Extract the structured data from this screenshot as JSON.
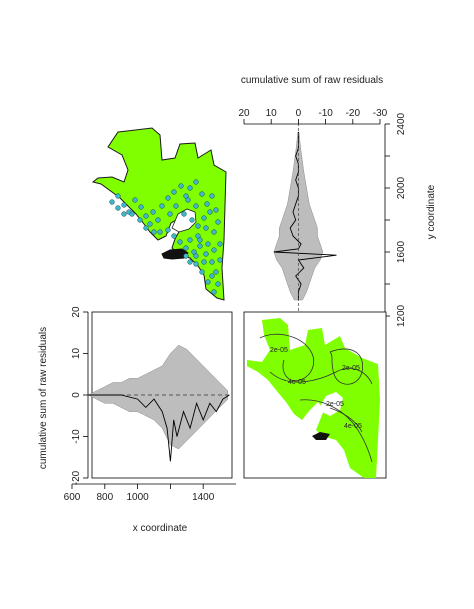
{
  "colors": {
    "map_fill": "#7fff00",
    "band_fill": "#bdbdbd",
    "points": "#3fb6c6",
    "line": "#000000",
    "background": "#ffffff"
  },
  "chart_data": [
    {
      "type": "area",
      "panel": "top-right",
      "xlabel": "cumulative sum of raw residuals",
      "ylabel": "y coordinate",
      "xlim": [
        20,
        -30
      ],
      "xticks": [
        "20",
        "10",
        "0",
        "-10",
        "-20",
        "-30"
      ],
      "ylim": [
        1200,
        2400
      ],
      "yticks": [
        "1200",
        "1600",
        "2000",
        "2400"
      ],
      "yticks_minor": [
        "1400",
        "1800",
        "2200"
      ],
      "series": [
        {
          "name": "",
          "y": [
            1300,
            1350,
            1400,
            1450,
            1500,
            1550,
            1580,
            1600,
            1620,
            1650,
            1700,
            1750,
            1800,
            1850,
            1900,
            1950,
            2000,
            2050,
            2100,
            2150,
            2200,
            2250,
            2300,
            2350
          ],
          "x": [
            0,
            0,
            -1,
            1,
            -2,
            0,
            -14,
            9,
            0,
            -1,
            2,
            3,
            1,
            2,
            1,
            0,
            0,
            1,
            0,
            0,
            1,
            0,
            0,
            0
          ]
        }
      ],
      "band": {
        "y": [
          1300,
          1350,
          1400,
          1450,
          1500,
          1550,
          1600,
          1650,
          1700,
          1750,
          1800,
          1850,
          1900,
          1950,
          2000,
          2050,
          2100,
          2150,
          2200,
          2250,
          2300,
          2350
        ],
        "half_width": [
          1.5,
          3,
          4,
          5,
          6,
          8,
          9,
          8,
          7,
          7,
          6,
          5,
          4,
          3.5,
          3,
          2.5,
          2,
          1.6,
          1.2,
          0.8,
          0.5,
          0.2
        ]
      }
    },
    {
      "type": "area",
      "panel": "bottom-left",
      "xlabel": "x coordinate",
      "ylabel": "cumulative sum of raw residuals",
      "xlim": [
        600,
        1600
      ],
      "xticks": [
        "600",
        "800",
        "1000",
        "1400"
      ],
      "xticks_minor": [
        "1200"
      ],
      "ylim": [
        -20,
        20
      ],
      "yticks": [
        "-20",
        "-10",
        "0",
        "10",
        "20"
      ],
      "series": [
        {
          "name": "",
          "x": [
            700,
            800,
            900,
            1000,
            1050,
            1100,
            1150,
            1180,
            1200,
            1220,
            1240,
            1280,
            1320,
            1360,
            1400,
            1440,
            1480,
            1520,
            1560
          ],
          "y": [
            0,
            0,
            0,
            -1,
            -3,
            -1,
            -4,
            -8,
            -16,
            -6,
            -10,
            -4,
            -8,
            -2,
            -6,
            -2,
            -4,
            -1,
            0
          ]
        }
      ],
      "band": {
        "x": [
          700,
          750,
          800,
          850,
          900,
          950,
          1000,
          1050,
          1100,
          1150,
          1200,
          1250,
          1300,
          1350,
          1400,
          1450,
          1500,
          1550
        ],
        "upper": [
          0,
          1,
          2,
          3,
          3,
          4,
          4,
          5,
          6,
          7,
          10,
          12,
          11,
          9,
          7,
          5,
          3,
          1
        ],
        "lower": [
          0,
          -1,
          -2,
          -2,
          -3,
          -4,
          -4,
          -5,
          -6,
          -8,
          -12,
          -13,
          -11,
          -9,
          -7,
          -5,
          -3,
          -1
        ]
      }
    },
    {
      "type": "heatmap",
      "panel": "bottom-right",
      "contour_labels": [
        "2e-05",
        "4e-05",
        "2e-05",
        "4e-05",
        "2e-05"
      ]
    }
  ]
}
